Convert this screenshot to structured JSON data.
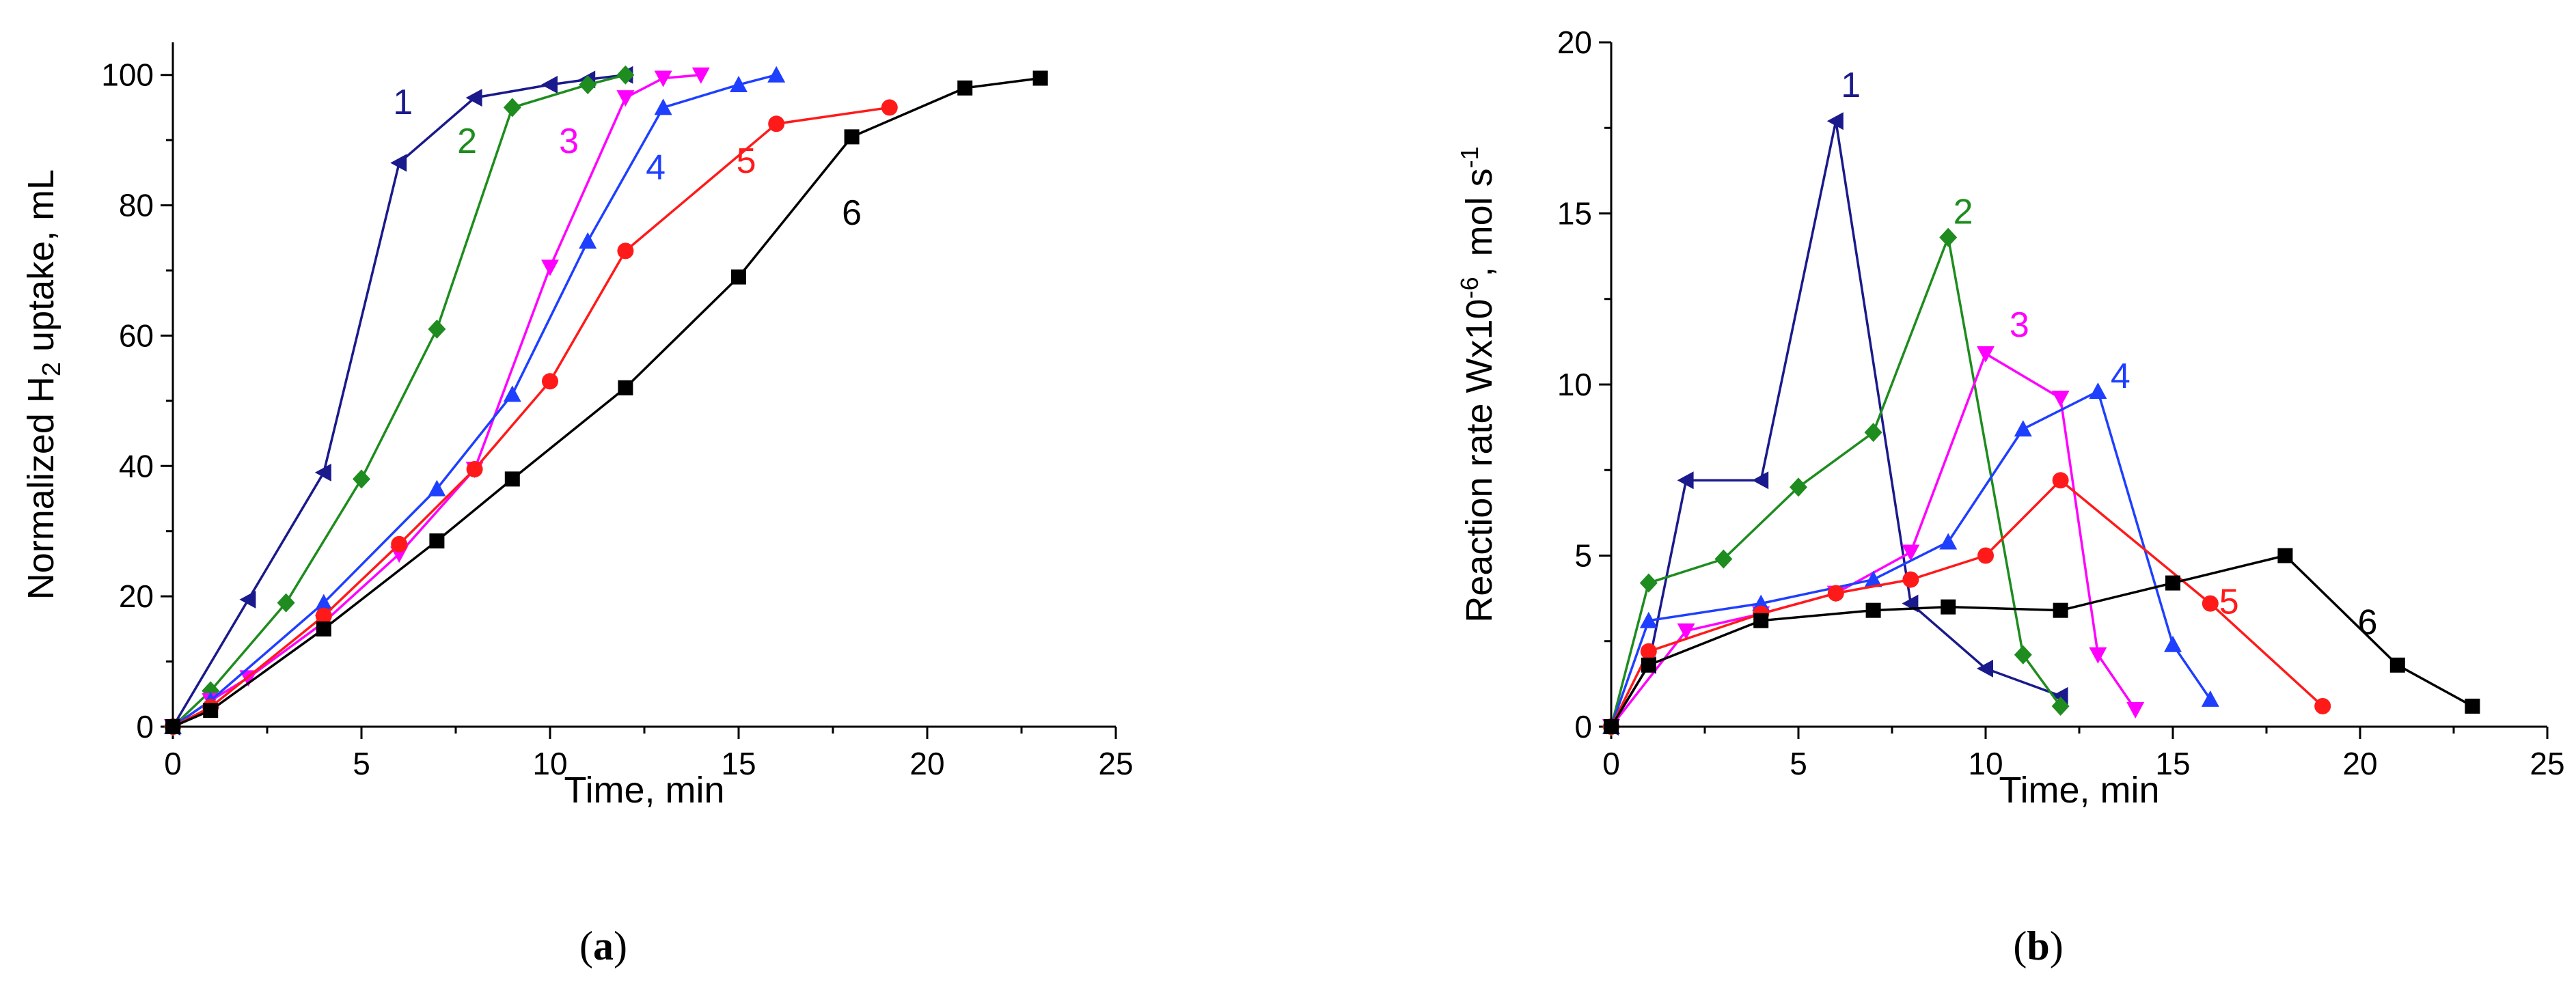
{
  "colors": {
    "1": "#1a1a8c",
    "2": "#1e8c1e",
    "3": "#ff00ff",
    "4": "#1f3fff",
    "5": "#ff1a1a",
    "6": "#000000"
  },
  "chart_data": [
    {
      "type": "line",
      "panel": "(a)",
      "panel_letter": "a",
      "title": "",
      "xlabel": "Time, min",
      "ylabel_prefix": "Normalized H",
      "ylabel_sub": "2",
      "ylabel_suffix": " uptake, mL",
      "xlim": [
        0,
        25
      ],
      "ylim": [
        0,
        105
      ],
      "xticks": [
        0,
        5,
        10,
        15,
        20,
        25
      ],
      "yticks": [
        0,
        20,
        40,
        60,
        80,
        100
      ],
      "series": [
        {
          "name": "1",
          "marker": "triangle-left",
          "x": [
            0,
            2,
            4,
            6,
            8,
            10,
            11,
            12
          ],
          "y": [
            0,
            19.5,
            39,
            86.5,
            96.5,
            98.5,
            99.3,
            100
          ],
          "label": "1",
          "label_at": [
            6.1,
            94
          ]
        },
        {
          "name": "2",
          "marker": "diamond",
          "x": [
            0,
            1,
            3,
            5,
            7,
            9,
            11,
            12
          ],
          "y": [
            0,
            5.5,
            19,
            38,
            61,
            95,
            98.5,
            100
          ],
          "label": "2",
          "label_at": [
            7.8,
            88
          ]
        },
        {
          "name": "3",
          "marker": "triangle-down",
          "x": [
            0,
            1,
            2,
            4,
            6,
            8,
            10,
            12,
            13,
            14
          ],
          "y": [
            0,
            4,
            7.5,
            16,
            26.5,
            39.5,
            70.5,
            96.5,
            99.5,
            100
          ],
          "label": "3",
          "label_at": [
            10.5,
            88
          ]
        },
        {
          "name": "4",
          "marker": "triangle-up",
          "x": [
            0,
            1,
            4,
            7,
            9,
            11,
            13,
            15,
            16
          ],
          "y": [
            0,
            4,
            19,
            36.5,
            51,
            74.5,
            95,
            98.5,
            100
          ],
          "label": "4",
          "label_at": [
            12.8,
            84
          ]
        },
        {
          "name": "5",
          "marker": "circle",
          "x": [
            0,
            1,
            4,
            6,
            8,
            10,
            12,
            16,
            19
          ],
          "y": [
            0,
            3,
            17,
            28,
            39.5,
            53,
            73,
            92.5,
            95
          ],
          "label": "5",
          "label_at": [
            15.2,
            85
          ]
        },
        {
          "name": "6",
          "marker": "square",
          "x": [
            0,
            1,
            4,
            7,
            9,
            12,
            15,
            18,
            21,
            23
          ],
          "y": [
            0,
            2.5,
            15,
            28.5,
            38,
            52,
            69,
            90.5,
            98,
            99.5
          ],
          "label": "6",
          "label_at": [
            18.0,
            77
          ]
        }
      ]
    },
    {
      "type": "line",
      "panel": "(b)",
      "panel_letter": "b",
      "title": "",
      "xlabel": "Time, min",
      "ylabel_prefix": "Reaction rate Wx10",
      "ylabel_exp1": "-6",
      "ylabel_mid": ", mol s",
      "ylabel_exp2": "-1",
      "xlim": [
        0,
        25
      ],
      "ylim": [
        0,
        20
      ],
      "xticks": [
        0,
        5,
        10,
        15,
        20,
        25
      ],
      "yticks": [
        0,
        5,
        10,
        15,
        20
      ],
      "series": [
        {
          "name": "1",
          "marker": "triangle-left",
          "x": [
            0,
            1,
            2,
            4,
            6,
            8,
            10,
            12
          ],
          "y": [
            0,
            1.8,
            7.2,
            7.2,
            17.7,
            3.6,
            1.7,
            0.9
          ],
          "label": "1",
          "label_at": [
            6.4,
            18.4
          ]
        },
        {
          "name": "2",
          "marker": "diamond",
          "x": [
            0,
            1,
            3,
            5,
            7,
            9,
            11,
            12
          ],
          "y": [
            0,
            4.2,
            4.9,
            7,
            8.6,
            14.3,
            2.1,
            0.6
          ],
          "label": "2",
          "label_at": [
            9.4,
            14.7
          ]
        },
        {
          "name": "3",
          "marker": "triangle-down",
          "x": [
            0,
            2,
            4,
            6,
            8,
            10,
            12,
            13,
            14
          ],
          "y": [
            0,
            2.8,
            3.3,
            3.9,
            5.1,
            10.9,
            9.6,
            2.1,
            0.5
          ],
          "label": "3",
          "label_at": [
            10.9,
            11.4
          ]
        },
        {
          "name": "4",
          "marker": "triangle-up",
          "x": [
            0,
            1,
            4,
            7,
            9,
            11,
            13,
            15,
            16
          ],
          "y": [
            0,
            3.1,
            3.6,
            4.3,
            5.4,
            8.7,
            9.8,
            2.4,
            0.8
          ],
          "label": "4",
          "label_at": [
            13.6,
            9.9
          ]
        },
        {
          "name": "5",
          "marker": "circle",
          "x": [
            0,
            1,
            4,
            6,
            8,
            10,
            12,
            16,
            19
          ],
          "y": [
            0,
            2.2,
            3.3,
            3.9,
            4.3,
            5.0,
            7.2,
            3.6,
            0.6
          ],
          "label": "5",
          "label_at": [
            16.5,
            3.3
          ]
        },
        {
          "name": "6",
          "marker": "square",
          "x": [
            0,
            1,
            4,
            7,
            9,
            12,
            15,
            18,
            21,
            23
          ],
          "y": [
            0,
            1.8,
            3.1,
            3.4,
            3.5,
            3.4,
            4.2,
            5.0,
            1.8,
            0.6
          ],
          "label": "6",
          "label_at": [
            20.2,
            2.7
          ]
        }
      ]
    }
  ]
}
